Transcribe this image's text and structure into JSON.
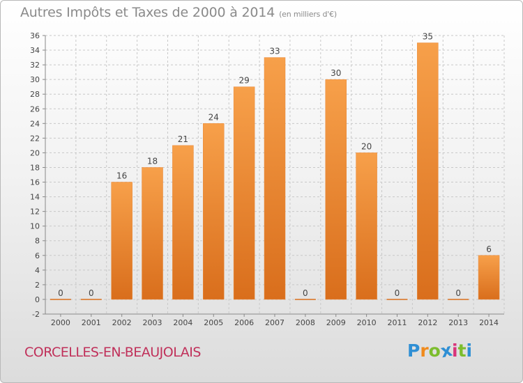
{
  "title": "Autres Impôts et Taxes de 2000 à 2014",
  "unit_note": "(en milliers d'€)",
  "commune": "CORCELLES-EN-BEAUJOLAIS",
  "logo": {
    "letters": [
      "P",
      "r",
      "o",
      "x",
      "i",
      "t",
      "i"
    ],
    "colors": [
      "#2f8fd4",
      "#f08a1c",
      "#7cbd2e",
      "#2f8fd4",
      "#d8347a",
      "#7cbd2e",
      "#2f8fd4"
    ]
  },
  "colors": {
    "bar_top": "#f7a04a",
    "bar_bottom": "#d96e1c",
    "grid": "#c8c8c8"
  },
  "chart_data": {
    "type": "bar",
    "categories": [
      "2000",
      "2001",
      "2002",
      "2003",
      "2004",
      "2005",
      "2006",
      "2007",
      "2008",
      "2009",
      "2010",
      "2011",
      "2012",
      "2013",
      "2014"
    ],
    "values": [
      0,
      0,
      16,
      18,
      21,
      24,
      29,
      33,
      0,
      30,
      20,
      0,
      35,
      0,
      6
    ],
    "ylim": [
      -2,
      36
    ],
    "yticks": [
      -2,
      0,
      2,
      4,
      6,
      8,
      10,
      12,
      14,
      16,
      18,
      20,
      22,
      24,
      26,
      28,
      30,
      32,
      34,
      36
    ],
    "grid": true,
    "legend": "none"
  }
}
